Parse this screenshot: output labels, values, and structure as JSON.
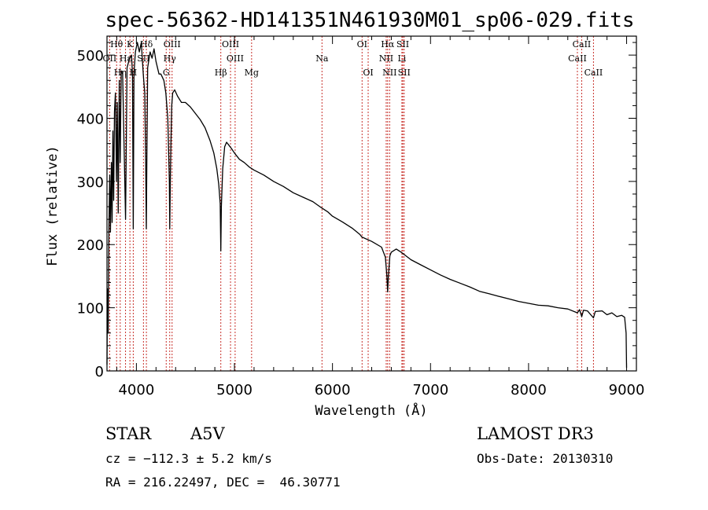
{
  "chart_data": {
    "type": "line",
    "title": "spec-56362-HD141351N461930M01_sp06-029.fits",
    "xlabel": "Wavelength (Å)",
    "ylabel": "Flux (relative)",
    "xlim": [
      3700,
      9100
    ],
    "ylim": [
      0,
      530
    ],
    "xticks": [
      4000,
      5000,
      6000,
      7000,
      8000,
      9000
    ],
    "yticks": [
      0,
      100,
      200,
      300,
      400,
      500
    ],
    "xtick_labels": [
      "4000",
      "5000",
      "6000",
      "7000",
      "8000",
      "9000"
    ],
    "ytick_labels": [
      "0",
      "100",
      "200",
      "300",
      "400",
      "500"
    ],
    "series": [
      {
        "name": "flux",
        "points": [
          [
            3700,
            10
          ],
          [
            3705,
            130
          ],
          [
            3712,
            60
          ],
          [
            3720,
            230
          ],
          [
            3728,
            310
          ],
          [
            3735,
            220
          ],
          [
            3745,
            330
          ],
          [
            3752,
            235
          ],
          [
            3760,
            380
          ],
          [
            3768,
            270
          ],
          [
            3776,
            410
          ],
          [
            3786,
            440
          ],
          [
            3797,
            300
          ],
          [
            3805,
            425
          ],
          [
            3815,
            250
          ],
          [
            3825,
            460
          ],
          [
            3835,
            330
          ],
          [
            3845,
            475
          ],
          [
            3860,
            470
          ],
          [
            3889,
            240
          ],
          [
            3905,
            480
          ],
          [
            3930,
            495
          ],
          [
            3950,
            500
          ],
          [
            3960,
            470
          ],
          [
            3968,
            225
          ],
          [
            3975,
            470
          ],
          [
            3990,
            505
          ],
          [
            4010,
            520
          ],
          [
            4030,
            505
          ],
          [
            4050,
            520
          ],
          [
            4070,
            470
          ],
          [
            4085,
            440
          ],
          [
            4095,
            330
          ],
          [
            4101,
            225
          ],
          [
            4107,
            340
          ],
          [
            4115,
            480
          ],
          [
            4140,
            505
          ],
          [
            4160,
            495
          ],
          [
            4180,
            510
          ],
          [
            4200,
            490
          ],
          [
            4230,
            470
          ],
          [
            4250,
            470
          ],
          [
            4280,
            460
          ],
          [
            4300,
            440
          ],
          [
            4320,
            400
          ],
          [
            4330,
            340
          ],
          [
            4336,
            300
          ],
          [
            4340,
            225
          ],
          [
            4346,
            300
          ],
          [
            4352,
            360
          ],
          [
            4360,
            420
          ],
          [
            4370,
            440
          ],
          [
            4390,
            445
          ],
          [
            4420,
            435
          ],
          [
            4460,
            425
          ],
          [
            4500,
            425
          ],
          [
            4550,
            418
          ],
          [
            4600,
            408
          ],
          [
            4650,
            398
          ],
          [
            4700,
            385
          ],
          [
            4750,
            365
          ],
          [
            4790,
            345
          ],
          [
            4820,
            320
          ],
          [
            4840,
            295
          ],
          [
            4855,
            265
          ],
          [
            4861,
            190
          ],
          [
            4867,
            260
          ],
          [
            4880,
            320
          ],
          [
            4900,
            355
          ],
          [
            4920,
            362
          ],
          [
            4940,
            358
          ],
          [
            4970,
            352
          ],
          [
            5000,
            345
          ],
          [
            5050,
            335
          ],
          [
            5100,
            330
          ],
          [
            5150,
            323
          ],
          [
            5200,
            318
          ],
          [
            5300,
            310
          ],
          [
            5400,
            300
          ],
          [
            5500,
            292
          ],
          [
            5600,
            282
          ],
          [
            5700,
            275
          ],
          [
            5800,
            268
          ],
          [
            5890,
            258
          ],
          [
            5950,
            252
          ],
          [
            6000,
            245
          ],
          [
            6100,
            236
          ],
          [
            6200,
            226
          ],
          [
            6280,
            216
          ],
          [
            6300,
            212
          ],
          [
            6400,
            205
          ],
          [
            6500,
            196
          ],
          [
            6540,
            180
          ],
          [
            6555,
            150
          ],
          [
            6563,
            125
          ],
          [
            6570,
            150
          ],
          [
            6585,
            182
          ],
          [
            6600,
            188
          ],
          [
            6650,
            193
          ],
          [
            6700,
            188
          ],
          [
            6800,
            176
          ],
          [
            6900,
            168
          ],
          [
            7000,
            160
          ],
          [
            7100,
            152
          ],
          [
            7200,
            145
          ],
          [
            7300,
            139
          ],
          [
            7400,
            133
          ],
          [
            7500,
            126
          ],
          [
            7600,
            122
          ],
          [
            7700,
            118
          ],
          [
            7800,
            114
          ],
          [
            7900,
            110
          ],
          [
            8000,
            107
          ],
          [
            8100,
            104
          ],
          [
            8200,
            103
          ],
          [
            8300,
            100
          ],
          [
            8400,
            98
          ],
          [
            8498,
            92
          ],
          [
            8520,
            97
          ],
          [
            8542,
            86
          ],
          [
            8560,
            96
          ],
          [
            8600,
            95
          ],
          [
            8662,
            84
          ],
          [
            8680,
            94
          ],
          [
            8750,
            95
          ],
          [
            8800,
            89
          ],
          [
            8850,
            92
          ],
          [
            8900,
            86
          ],
          [
            8950,
            88
          ],
          [
            8980,
            85
          ],
          [
            8995,
            60
          ],
          [
            9000,
            5
          ]
        ]
      }
    ],
    "line_markers": [
      {
        "label": "Hθ",
        "wavelength": 3798,
        "row": 0
      },
      {
        "label": "K",
        "wavelength": 3934,
        "row": 0
      },
      {
        "label": "Hδ",
        "wavelength": 4102,
        "row": 0
      },
      {
        "label": "OIII",
        "wavelength": 4364,
        "row": 0
      },
      {
        "label": "OIII",
        "wavelength": 4960,
        "row": 0
      },
      {
        "label": "OI",
        "wavelength": 6302,
        "row": 0
      },
      {
        "label": "Hα",
        "wavelength": 6563,
        "row": 0
      },
      {
        "label": "SII",
        "wavelength": 6717,
        "row": 0
      },
      {
        "label": "CaII",
        "wavelength": 8542,
        "row": 0
      },
      {
        "label": "OII",
        "wavelength": 3727,
        "row": 1
      },
      {
        "label": "Hε",
        "wavelength": 3889,
        "row": 1
      },
      {
        "label": "SII",
        "wavelength": 4072,
        "row": 1
      },
      {
        "label": "Hγ",
        "wavelength": 4340,
        "row": 1
      },
      {
        "label": "OIII",
        "wavelength": 5007,
        "row": 1
      },
      {
        "label": "Na",
        "wavelength": 5893,
        "row": 1
      },
      {
        "label": "NII",
        "wavelength": 6548,
        "row": 1
      },
      {
        "label": "Li",
        "wavelength": 6708,
        "row": 1
      },
      {
        "label": "CaII",
        "wavelength": 8498,
        "row": 1
      },
      {
        "label": "Hη",
        "wavelength": 3835,
        "row": 2
      },
      {
        "label": "H",
        "wavelength": 3968,
        "row": 2
      },
      {
        "label": "G",
        "wavelength": 4304,
        "row": 2
      },
      {
        "label": "Hβ",
        "wavelength": 4861,
        "row": 2
      },
      {
        "label": "Mg",
        "wavelength": 5175,
        "row": 2
      },
      {
        "label": "OI",
        "wavelength": 6364,
        "row": 2
      },
      {
        "label": "NII",
        "wavelength": 6583,
        "row": 2
      },
      {
        "label": "SII",
        "wavelength": 6731,
        "row": 2
      },
      {
        "label": "CaII",
        "wavelength": 8662,
        "row": 2
      }
    ]
  },
  "info": {
    "object_class": "STAR",
    "subclass": "A5V",
    "survey": "LAMOST DR3",
    "redshift": "cz = −112.3 ± 5.2 km/s",
    "obs_date": "Obs-Date: 20130310",
    "coords": "RA = 216.22497, DEC =  46.30771"
  },
  "colors": {
    "line_marker": "#c8302a",
    "spectrum": "#000000",
    "axes": "#000000"
  }
}
